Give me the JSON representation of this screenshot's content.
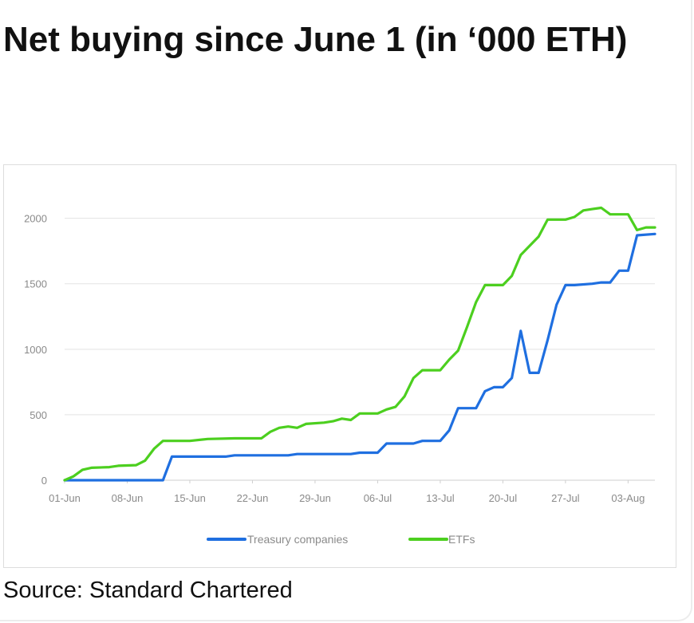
{
  "title": "Net buying since June 1 (in ‘000 ETH)",
  "source": "Source: Standard Chartered",
  "chart_data": {
    "type": "line",
    "title": "Net buying since June 1 (in ‘000 ETH)",
    "xlabel": "",
    "ylabel": "",
    "x_tick_labels": [
      "01-Jun",
      "08-Jun",
      "15-Jun",
      "22-Jun",
      "29-Jun",
      "06-Jul",
      "13-Jul",
      "20-Jul",
      "27-Jul",
      "03-Aug"
    ],
    "y_ticks": [
      0,
      500,
      1000,
      1500,
      2000
    ],
    "ylim": [
      0,
      2150
    ],
    "xlim": [
      "2025-06-01",
      "2025-08-06"
    ],
    "grid": "horizontal",
    "legend_position": "bottom",
    "series": [
      {
        "name": "Treasury companies",
        "color": "#1f6fe0",
        "points": [
          [
            "2025-06-01",
            0
          ],
          [
            "2025-06-12",
            0
          ],
          [
            "2025-06-13",
            180
          ],
          [
            "2025-06-19",
            180
          ],
          [
            "2025-06-20",
            190
          ],
          [
            "2025-06-26",
            190
          ],
          [
            "2025-06-27",
            200
          ],
          [
            "2025-07-03",
            200
          ],
          [
            "2025-07-04",
            210
          ],
          [
            "2025-07-06",
            210
          ],
          [
            "2025-07-07",
            280
          ],
          [
            "2025-07-10",
            280
          ],
          [
            "2025-07-11",
            300
          ],
          [
            "2025-07-13",
            300
          ],
          [
            "2025-07-14",
            380
          ],
          [
            "2025-07-15",
            550
          ],
          [
            "2025-07-17",
            550
          ],
          [
            "2025-07-18",
            680
          ],
          [
            "2025-07-19",
            710
          ],
          [
            "2025-07-20",
            710
          ],
          [
            "2025-07-21",
            780
          ],
          [
            "2025-07-22",
            1140
          ],
          [
            "2025-07-23",
            820
          ],
          [
            "2025-07-24",
            820
          ],
          [
            "2025-07-25",
            1070
          ],
          [
            "2025-07-26",
            1340
          ],
          [
            "2025-07-27",
            1490
          ],
          [
            "2025-07-28",
            1490
          ],
          [
            "2025-07-30",
            1500
          ],
          [
            "2025-07-31",
            1510
          ],
          [
            "2025-08-01",
            1510
          ],
          [
            "2025-08-02",
            1600
          ],
          [
            "2025-08-03",
            1600
          ],
          [
            "2025-08-04",
            1870
          ],
          [
            "2025-08-06",
            1880
          ]
        ]
      },
      {
        "name": "ETFs",
        "color": "#4ccf1f",
        "points": [
          [
            "2025-06-01",
            0
          ],
          [
            "2025-06-02",
            30
          ],
          [
            "2025-06-03",
            80
          ],
          [
            "2025-06-04",
            95
          ],
          [
            "2025-06-06",
            100
          ],
          [
            "2025-06-07",
            110
          ],
          [
            "2025-06-09",
            115
          ],
          [
            "2025-06-10",
            150
          ],
          [
            "2025-06-11",
            240
          ],
          [
            "2025-06-12",
            300
          ],
          [
            "2025-06-15",
            300
          ],
          [
            "2025-06-17",
            315
          ],
          [
            "2025-06-20",
            320
          ],
          [
            "2025-06-23",
            320
          ],
          [
            "2025-06-24",
            370
          ],
          [
            "2025-06-25",
            400
          ],
          [
            "2025-06-26",
            410
          ],
          [
            "2025-06-27",
            400
          ],
          [
            "2025-06-28",
            430
          ],
          [
            "2025-06-30",
            440
          ],
          [
            "2025-07-01",
            450
          ],
          [
            "2025-07-02",
            470
          ],
          [
            "2025-07-03",
            460
          ],
          [
            "2025-07-04",
            510
          ],
          [
            "2025-07-06",
            510
          ],
          [
            "2025-07-07",
            540
          ],
          [
            "2025-07-08",
            560
          ],
          [
            "2025-07-09",
            640
          ],
          [
            "2025-07-10",
            780
          ],
          [
            "2025-07-11",
            840
          ],
          [
            "2025-07-13",
            840
          ],
          [
            "2025-07-14",
            920
          ],
          [
            "2025-07-15",
            990
          ],
          [
            "2025-07-16",
            1170
          ],
          [
            "2025-07-17",
            1360
          ],
          [
            "2025-07-18",
            1490
          ],
          [
            "2025-07-20",
            1490
          ],
          [
            "2025-07-21",
            1560
          ],
          [
            "2025-07-22",
            1720
          ],
          [
            "2025-07-23",
            1790
          ],
          [
            "2025-07-24",
            1860
          ],
          [
            "2025-07-25",
            1990
          ],
          [
            "2025-07-27",
            1990
          ],
          [
            "2025-07-28",
            2010
          ],
          [
            "2025-07-29",
            2060
          ],
          [
            "2025-07-30",
            2070
          ],
          [
            "2025-07-31",
            2080
          ],
          [
            "2025-08-01",
            2030
          ],
          [
            "2025-08-03",
            2030
          ],
          [
            "2025-08-04",
            1910
          ],
          [
            "2025-08-05",
            1930
          ],
          [
            "2025-08-06",
            1930
          ]
        ]
      }
    ]
  }
}
